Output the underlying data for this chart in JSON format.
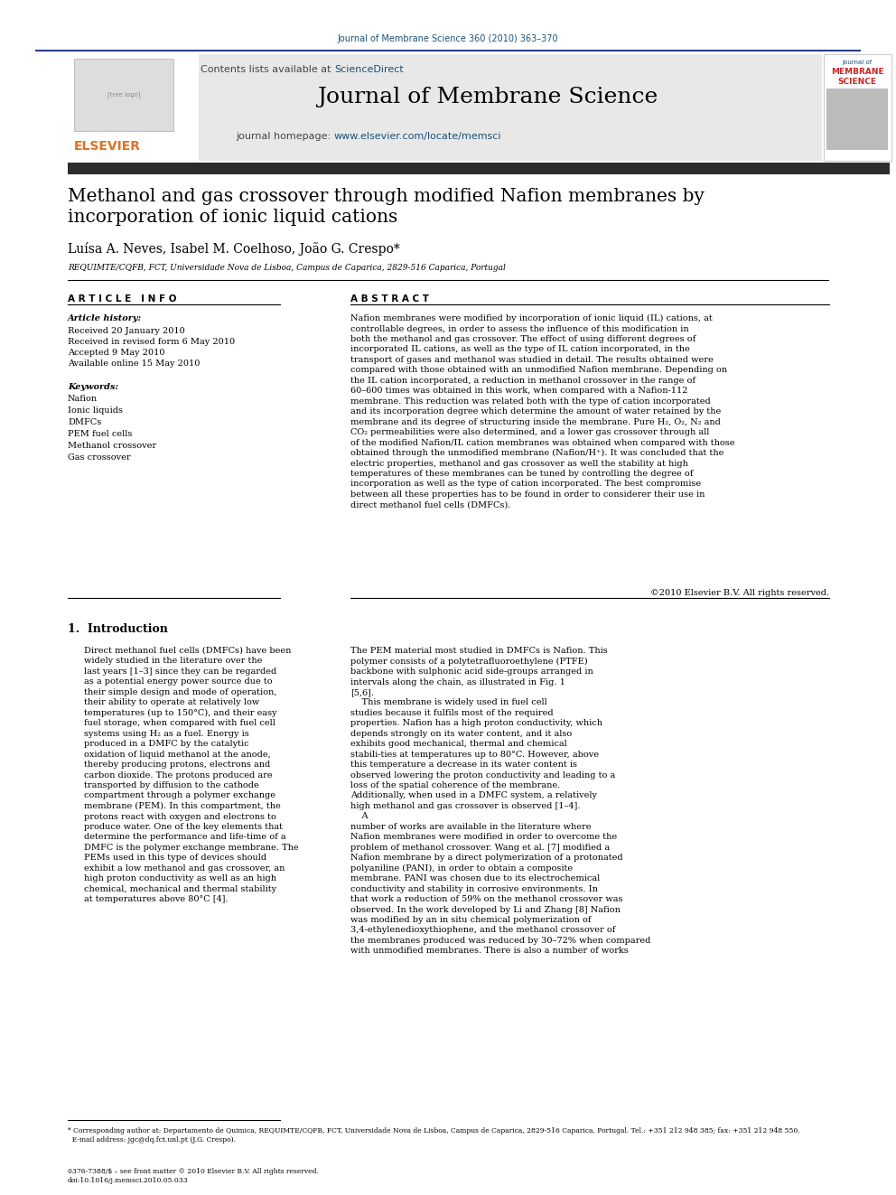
{
  "page_title_top": "Journal of Membrane Science 360 (2010) 363–370",
  "journal_name": "Journal of Membrane Science",
  "contents_text": "Contents lists available at ScienceDirect",
  "sciencedirect_text": "ScienceDirect",
  "homepage_text": "journal homepage: www.elsevier.com/locate/memsci",
  "homepage_url": "www.elsevier.com/locate/memsci",
  "article_title": "Methanol and gas crossover through modified Nafion membranes by\nincorporation of ionic liquid cations",
  "authors": "Luísa A. Neves, Isabel M. Coelhoso, João G. Crespo*",
  "affiliation": "REQUIMTE/CQFB, FCT, Universidade Nova de Lisboa, Campus de Caparica, 2829-516 Caparica, Portugal",
  "article_info_title": "A R T I C L E   I N F O",
  "abstract_title": "A B S T R A C T",
  "article_history_title": "Article history:",
  "received1": "Received 20 January 2010",
  "received2": "Received in revised form 6 May 2010",
  "accepted": "Accepted 9 May 2010",
  "available": "Available online 15 May 2010",
  "keywords_title": "Keywords:",
  "keywords": [
    "Nafion",
    "Ionic liquids",
    "DMFCs",
    "PEM fuel cells",
    "Methanol crossover",
    "Gas crossover"
  ],
  "abstract_text": "Nafion membranes were modified by incorporation of ionic liquid (IL) cations, at controllable degrees, in order to assess the influence of this modification in both the methanol and gas crossover. The effect of using different degrees of incorporated IL cations, as well as the type of IL cation incorporated, in the transport of gases and methanol was studied in detail. The results obtained were compared with those obtained with an unmodified Nafion membrane. Depending on the IL cation incorporated, a reduction in methanol crossover in the range of 60–600 times was obtained in this work, when compared with a Nafion-112 membrane. This reduction was related both with the type of cation incorporated and its incorporation degree which determine the amount of water retained by the membrane and its degree of structuring inside the membrane. Pure H₂, O₂, N₂ and CO₂ permeabilities were also determined, and a lower gas crossover through all of the modified Nafion/IL cation membranes was obtained when compared with those obtained through the unmodified membrane (Nafion/H⁺). It was concluded that the electric properties, methanol and gas crossover as well the stability at high temperatures of these membranes can be tuned by controlling the degree of incorporation as well as the type of cation incorporated. The best compromise between all these properties has to be found in order to considerer their use in direct methanol fuel cells (DMFCs).",
  "copyright": "©2010 Elsevier B.V. All rights reserved.",
  "intro_title": "1.  Introduction",
  "intro_left": "Direct methanol fuel cells (DMFCs) have been widely studied in the literature over the last years [1–3] since they can be regarded as a potential energy power source due to their simple design and mode of operation, their ability to operate at relatively low temperatures (up to 150°C), and their easy fuel storage, when compared with fuel cell systems using H₂ as a fuel. Energy is produced in a DMFC by the catalytic oxidation of liquid methanol at the anode, thereby producing protons, electrons and carbon dioxide. The protons produced are transported by diffusion to the cathode compartment through a polymer exchange membrane (PEM). In this compartment, the protons react with oxygen and electrons to produce water. One of the key elements that determine the performance and life-time of a DMFC is the polymer exchange membrane. The PEMs used in this type of devices should exhibit a low methanol and gas crossover, an high proton conductivity as well as an high chemical, mechanical and thermal stability at temperatures above 80°C [4].",
  "intro_right": "The PEM material most studied in DMFCs is Nafion. This polymer consists of a polytetrafluoroethylene (PTFE) backbone with sulphonic acid side-groups arranged in intervals along the chain, as illustrated in Fig. 1 [5,6].\n    This membrane is widely used in fuel cell studies because it fulfils most of the required properties. Nafion has a high proton conductivity, which depends strongly on its water content, and it also exhibits good mechanical, thermal and chemical stabili-ties at temperatures up to 80°C. However, above this temperature a decrease in its water content is observed lowering the proton conductivity and leading to a loss of the spatial coherence of the membrane. Additionally, when used in a DMFC system, a relatively high methanol and gas crossover is observed [1–4].\n    A number of works are available in the literature where Nafion membranes were modified in order to overcome the problem of methanol crossover. Wang et al. [7] modified a Nafion membrane by a direct polymerization of a protonated polyaniline (PANI), in order to obtain a composite membrane. PANI was chosen due to its electrochemical conductivity and stability in corrosive environments. In that work a reduction of 59% on the methanol crossover was observed. In the work developed by Li and Zhang [8] Nafion was modified by an in situ chemical polymerization of 3,4-ethylenedioxythiophene, and the methanol crossover of the membranes produced was reduced by 30–72% when compared with unmodified membranes. There is also a number of works",
  "footnote_text": "* Corresponding author at: Departamento de Quimica, REQUIMTE/CQFB, FCT, Universidade Nova de Lisboa, Campus de Caparica, 2829-516 Caparica, Portugal. Tel.: +351 212 948 385; fax: +351 212 948 550.\n  E-mail address: jgc@dq.fct.unl.pt (J.G. Crespo).",
  "issn_text": "0376-7388/$ – see front matter © 2010 Elsevier B.V. All rights reserved.\ndoi:10.1016/j.memsci.2010.05.033",
  "bg_color": "#ffffff",
  "header_bg": "#e8e8e8",
  "dark_bar_color": "#2c2c2c",
  "title_color": "#000000",
  "link_color": "#1a5276",
  "elsevier_orange": "#e07020",
  "journal_title_color": "#000000",
  "section_line_color": "#000000"
}
